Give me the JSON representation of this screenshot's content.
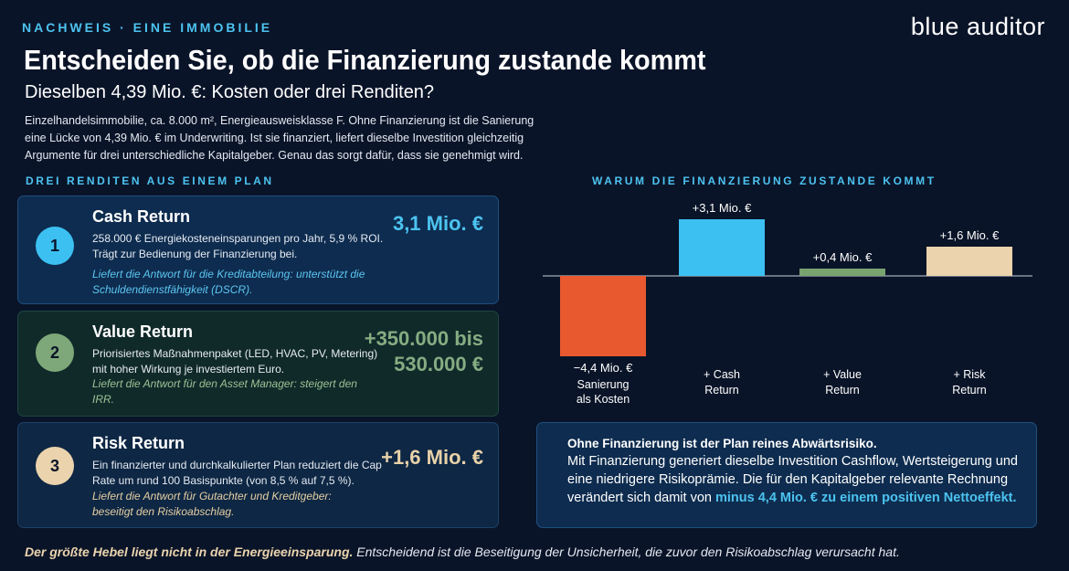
{
  "header": {
    "eyebrow": "NACHWEIS · EINE IMMOBILIE",
    "brand": "blue auditor",
    "title": "Entscheiden Sie, ob die Finanzierung zustande kommt",
    "subtitle": "Dieselben 4,39 Mio. €: Kosten oder drei Renditen?",
    "intro": "Einzelhandelsimmobilie, ca. 8.000 m², Energieausweisklasse F. Ohne Finanzierung ist die Sanierung eine Lücke von 4,39 Mio. € im Underwriting. Ist sie finanziert, liefert dieselbe Investition gleichzeitig Argumente für drei unterschiedliche Kapitalgeber. Genau das sorgt dafür, dass sie genehmigt wird."
  },
  "left_section": {
    "label": "DREI RENDITEN AUS EINEM PLAN",
    "cards": [
      {
        "number": "1",
        "title": "Cash Return",
        "description": "258.000 € Energiekosteneinsparungen pro Jahr, 5,9 % ROI. Trägt zur Bedienung der Finanzierung bei.",
        "note": "Liefert die Antwort für die Kreditabteilung: unterstützt die Schuldendienstfähigkeit (DSCR).",
        "value": "3,1 Mio. €",
        "color": "#3cc0f2"
      },
      {
        "number": "2",
        "title": "Value Return",
        "description": "Priorisiertes Maßnahmenpaket (LED, HVAC, PV, Metering) mit hoher Wirkung je investiertem Euro.",
        "note": "Liefert die Antwort für den Asset Manager: steigert den IRR.",
        "value_line1": "+350.000 bis",
        "value_line2": "530.000 €",
        "color": "#7ea879"
      },
      {
        "number": "3",
        "title": "Risk Return",
        "description": "Ein finanzierter und durchkalkulierter Plan reduziert die Cap Rate um rund 100 Basispunkte (von 8,5 % auf 7,5 %).",
        "note": "Liefert die Antwort für Gutachter und Kreditgeber: beseitigt den Risikoabschlag.",
        "value": "+1,6 Mio. €",
        "color": "#ead3ad"
      }
    ]
  },
  "right_section": {
    "label": "WARUM DIE FINANZIERUNG ZUSTANDE KOMMT"
  },
  "chart_data": {
    "type": "bar",
    "title": "",
    "unit": "Mio. €",
    "categories": [
      [
        "Sanierung",
        "als Kosten"
      ],
      [
        "+ Cash",
        "Return"
      ],
      [
        "+ Value",
        "Return"
      ],
      [
        "+ Risk",
        "Return"
      ]
    ],
    "values": [
      -4.4,
      3.1,
      0.4,
      1.6
    ],
    "value_labels": [
      "−4,4 Mio. €",
      "+3,1 Mio. €",
      "+0,4 Mio. €",
      "+1,6 Mio. €"
    ],
    "colors": [
      "#e8592f",
      "#3cc0f2",
      "#79a36f",
      "#ead3ad"
    ],
    "ylim": [
      -4.4,
      3.1
    ],
    "grid": false,
    "legend": "none"
  },
  "callout": {
    "heading": "Ohne Finanzierung ist der Plan reines Abwärtsrisiko.",
    "body": "Mit Finanzierung generiert dieselbe Investition Cashflow, Wertsteigerung und eine niedrigere Risikoprämie. Die für den Kapitalgeber relevante Rechnung verändert sich damit von ",
    "highlight": "minus 4,4 Mio. € zu einem positiven Nettoeffekt."
  },
  "footer": {
    "highlight": "Der größte Hebel liegt nicht in der Energieeinsparung.",
    "rest": " Entscheidend ist die Beseitigung der Unsicherheit, die zuvor den Risikoabschlag verursacht hat."
  }
}
